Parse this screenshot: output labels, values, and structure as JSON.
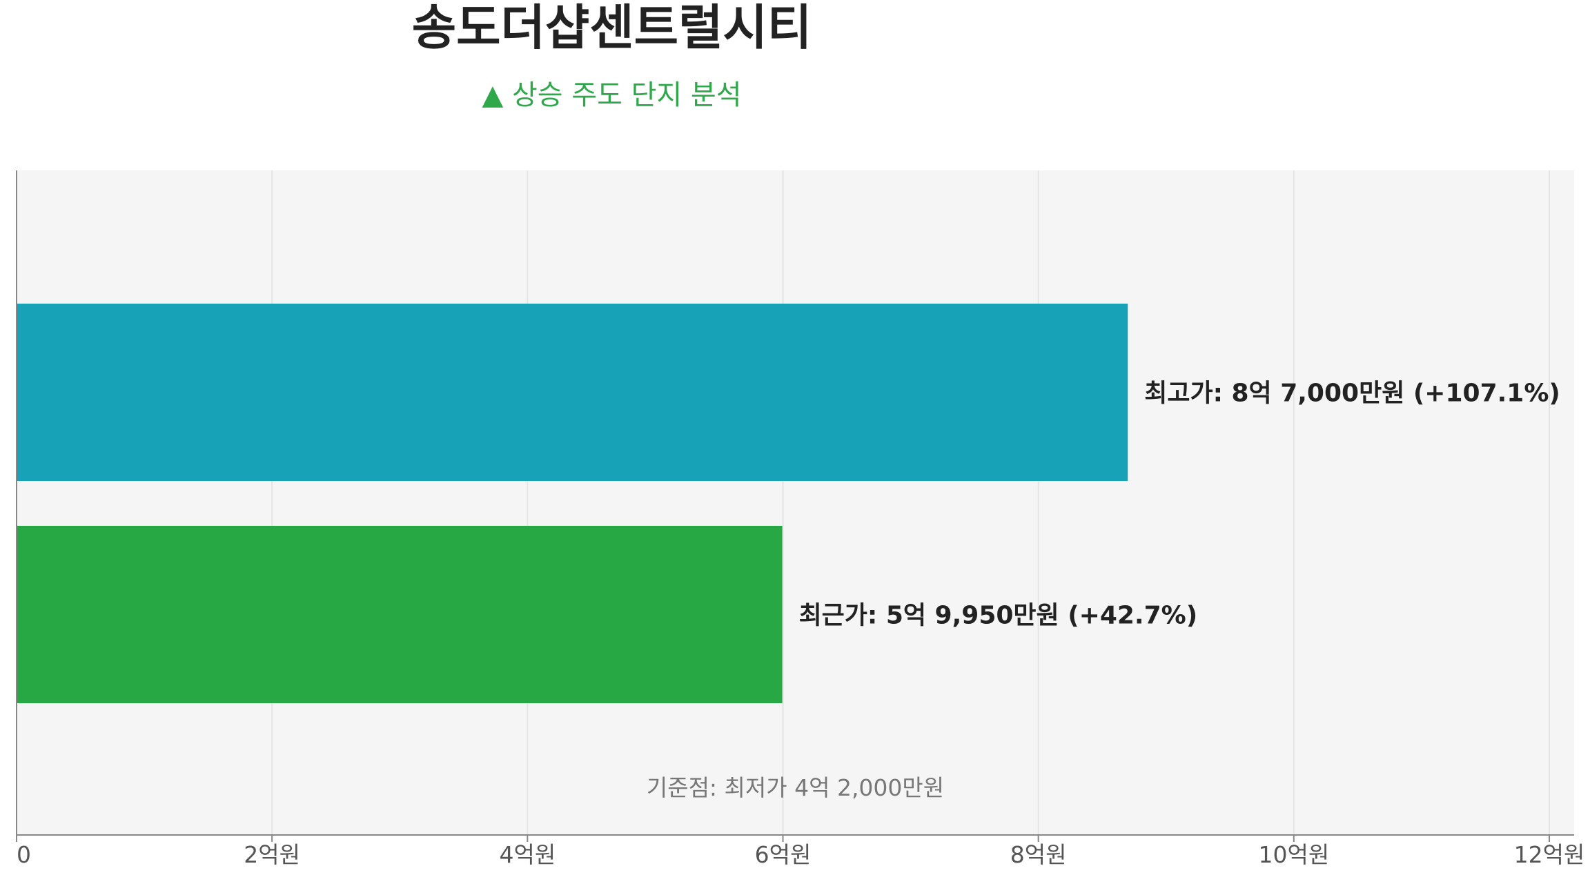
{
  "chart_data": {
    "type": "bar",
    "orientation": "horizontal",
    "title": "송도더샵센트럴시티",
    "subtitle": "▲ 상승 주도 단지 분석",
    "xlim": [
      0,
      12
    ],
    "x_ticks": [
      0,
      2,
      4,
      6,
      8,
      10,
      12
    ],
    "x_tick_labels": [
      "0",
      "2억원",
      "4억원",
      "6억원",
      "8억원",
      "10억원",
      "12억원"
    ],
    "grid": true,
    "bars": [
      {
        "value": 8.7,
        "label": "최고가: 8억 7,000만원 (+107.1%)",
        "color": "#17a2b8"
      },
      {
        "value": 5.995,
        "label": "최근가: 5억 9,950만원 (+42.7%)",
        "color": "#28a745"
      }
    ],
    "annotation": "기준점: 최저가 4억 2,000만원",
    "colors": {
      "plot_background": "#f5f5f5",
      "grid": "#e4e4e4",
      "axis": "#888888",
      "subtitle": "#2ea84a"
    }
  }
}
